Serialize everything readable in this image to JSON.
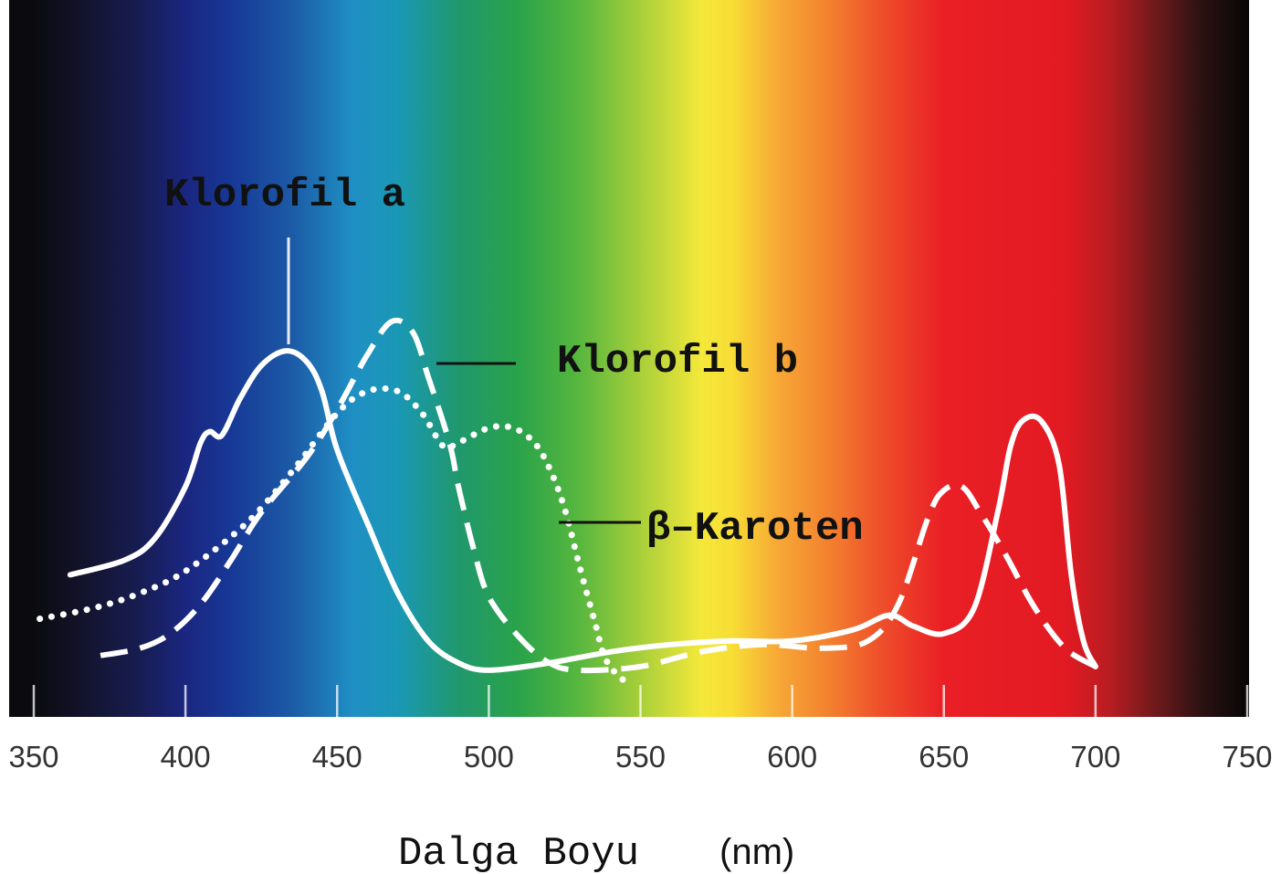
{
  "chart_data": {
    "type": "line",
    "title": "",
    "xlabel": "Dalga Boyu",
    "xlabel_unit": "(nm)",
    "ylabel": "",
    "xlim": [
      350,
      750
    ],
    "ylim": [
      0,
      1
    ],
    "grid": false,
    "x_ticks": [
      350,
      400,
      450,
      500,
      550,
      600,
      650,
      700,
      750
    ],
    "x_tick_labels": [
      "350",
      "400",
      "450",
      "500",
      "550",
      "600",
      "650",
      "700",
      "750"
    ],
    "background": "visible light spectrum gradient from 350 nm to 750 nm",
    "series": [
      {
        "name": "Klorofil a",
        "style": "solid",
        "color": "#ffffff",
        "points": [
          [
            362,
            0.3
          ],
          [
            380,
            0.34
          ],
          [
            390,
            0.4
          ],
          [
            400,
            0.54
          ],
          [
            405,
            0.66
          ],
          [
            408,
            0.69
          ],
          [
            412,
            0.68
          ],
          [
            418,
            0.78
          ],
          [
            425,
            0.87
          ],
          [
            433,
            0.91
          ],
          [
            440,
            0.88
          ],
          [
            445,
            0.8
          ],
          [
            450,
            0.64
          ],
          [
            460,
            0.44
          ],
          [
            470,
            0.25
          ],
          [
            480,
            0.12
          ],
          [
            490,
            0.06
          ],
          [
            500,
            0.04
          ],
          [
            520,
            0.06
          ],
          [
            540,
            0.09
          ],
          [
            560,
            0.11
          ],
          [
            580,
            0.12
          ],
          [
            600,
            0.12
          ],
          [
            620,
            0.15
          ],
          [
            632,
            0.19
          ],
          [
            640,
            0.16
          ],
          [
            650,
            0.14
          ],
          [
            660,
            0.21
          ],
          [
            668,
            0.48
          ],
          [
            672,
            0.65
          ],
          [
            676,
            0.72
          ],
          [
            682,
            0.72
          ],
          [
            688,
            0.6
          ],
          [
            692,
            0.3
          ],
          [
            696,
            0.12
          ],
          [
            700,
            0.05
          ]
        ]
      },
      {
        "name": "Klorofil b",
        "style": "dashed",
        "color": "#ffffff",
        "points": [
          [
            372,
            0.08
          ],
          [
            385,
            0.1
          ],
          [
            395,
            0.14
          ],
          [
            405,
            0.22
          ],
          [
            415,
            0.34
          ],
          [
            425,
            0.47
          ],
          [
            440,
            0.62
          ],
          [
            450,
            0.75
          ],
          [
            460,
            0.9
          ],
          [
            468,
            0.99
          ],
          [
            475,
            0.96
          ],
          [
            480,
            0.84
          ],
          [
            487,
            0.66
          ],
          [
            490,
            0.54
          ],
          [
            495,
            0.37
          ],
          [
            500,
            0.24
          ],
          [
            510,
            0.13
          ],
          [
            520,
            0.06
          ],
          [
            530,
            0.04
          ],
          [
            550,
            0.05
          ],
          [
            570,
            0.09
          ],
          [
            590,
            0.11
          ],
          [
            610,
            0.1
          ],
          [
            625,
            0.12
          ],
          [
            635,
            0.22
          ],
          [
            645,
            0.46
          ],
          [
            650,
            0.53
          ],
          [
            656,
            0.54
          ],
          [
            662,
            0.47
          ],
          [
            670,
            0.36
          ],
          [
            680,
            0.21
          ],
          [
            690,
            0.1
          ],
          [
            700,
            0.05
          ]
        ]
      },
      {
        "name": "β–Karoten",
        "style": "dotted",
        "color": "#ffffff",
        "points": [
          [
            352,
            0.18
          ],
          [
            370,
            0.21
          ],
          [
            385,
            0.25
          ],
          [
            400,
            0.31
          ],
          [
            420,
            0.44
          ],
          [
            435,
            0.58
          ],
          [
            450,
            0.74
          ],
          [
            460,
            0.8
          ],
          [
            470,
            0.8
          ],
          [
            478,
            0.74
          ],
          [
            485,
            0.65
          ],
          [
            490,
            0.66
          ],
          [
            500,
            0.7
          ],
          [
            508,
            0.7
          ],
          [
            515,
            0.66
          ],
          [
            520,
            0.59
          ],
          [
            525,
            0.48
          ],
          [
            530,
            0.32
          ],
          [
            535,
            0.17
          ],
          [
            538,
            0.08
          ],
          [
            542,
            0.03
          ],
          [
            545,
            0.01
          ]
        ]
      }
    ]
  }
}
